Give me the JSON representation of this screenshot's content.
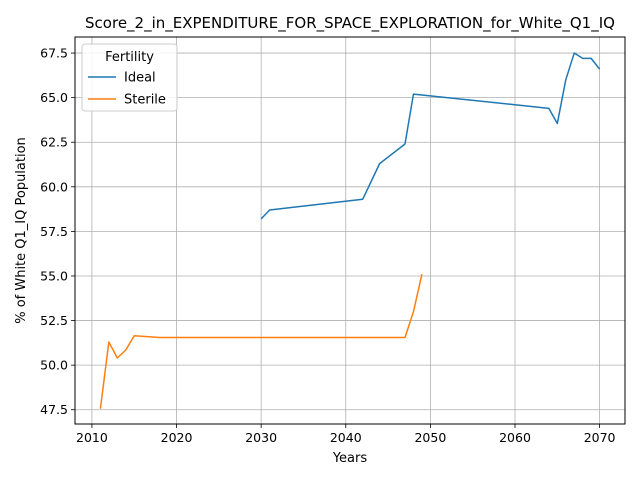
{
  "chart_data": {
    "type": "line",
    "title": "Score_2_in_EXPENDITURE_FOR_SPACE_EXPLORATION_for_White_Q1_IQ",
    "xlabel": "Years",
    "ylabel": "% of White Q1_IQ Population",
    "xlim": [
      2008,
      2073
    ],
    "ylim": [
      46.7,
      68.4
    ],
    "xticks": [
      2010,
      2020,
      2030,
      2040,
      2050,
      2060,
      2070
    ],
    "yticks": [
      47.5,
      50.0,
      52.5,
      55.0,
      57.5,
      60.0,
      62.5,
      65.0,
      67.5
    ],
    "x_tick_labels": [
      "2010",
      "2020",
      "2030",
      "2040",
      "2050",
      "2060",
      "2070"
    ],
    "y_tick_labels": [
      "47.5",
      "50.0",
      "52.5",
      "55.0",
      "57.5",
      "60.0",
      "62.5",
      "65.0",
      "67.5"
    ],
    "grid": true,
    "legend": {
      "title": "Fertility",
      "placement": "top-left"
    },
    "series": [
      {
        "name": "Ideal",
        "color": "#1f77b4",
        "points": [
          [
            2030,
            58.2
          ],
          [
            2031,
            58.7
          ],
          [
            2042,
            59.3
          ],
          [
            2044,
            61.3
          ],
          [
            2047,
            62.4
          ],
          [
            2048,
            65.2
          ],
          [
            2064,
            64.4
          ],
          [
            2065,
            63.55
          ],
          [
            2066,
            66.0
          ],
          [
            2067,
            67.5
          ],
          [
            2068,
            67.2
          ],
          [
            2069,
            67.2
          ],
          [
            2070,
            66.6
          ]
        ]
      },
      {
        "name": "Sterile",
        "color": "#ff7f0e",
        "points": [
          [
            2011,
            47.55
          ],
          [
            2012,
            51.3
          ],
          [
            2013,
            50.4
          ],
          [
            2014,
            50.85
          ],
          [
            2015,
            51.65
          ],
          [
            2018,
            51.55
          ],
          [
            2047,
            51.55
          ],
          [
            2048,
            53.0
          ],
          [
            2049,
            55.1
          ]
        ]
      }
    ]
  }
}
